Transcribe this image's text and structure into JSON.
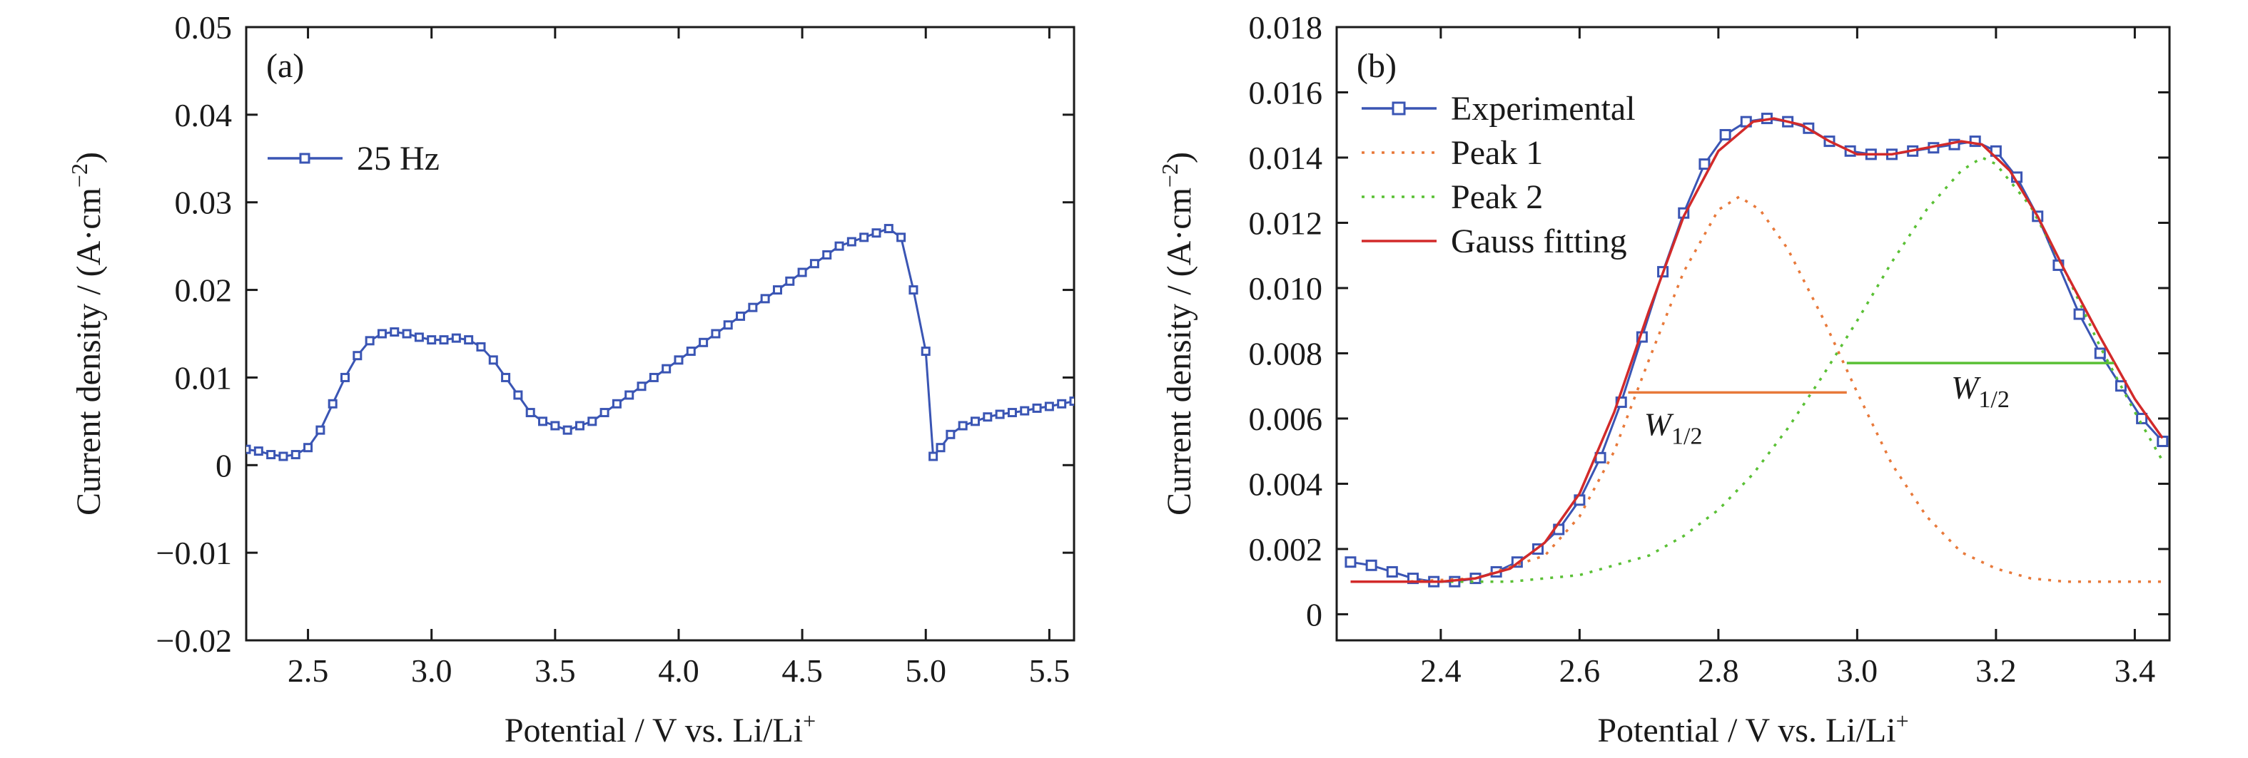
{
  "chart_data": [
    {
      "panel": "(a)",
      "type": "line",
      "xlabel": "Potential / V vs. Li/Li",
      "xlabel_sup": "+",
      "ylabel": "Current density / (A·cm",
      "ylabel_sup": "−2",
      "ylabel_end": ")",
      "xlim": [
        2.25,
        5.6
      ],
      "ylim": [
        -0.02,
        0.05
      ],
      "xticks": [
        2.5,
        3.0,
        3.5,
        4.0,
        4.5,
        5.0,
        5.5
      ],
      "xtick_labels": [
        "2.5",
        "3.0",
        "3.5",
        "4.0",
        "4.5",
        "5.0",
        "5.5"
      ],
      "yticks": [
        -0.02,
        -0.01,
        0,
        0.01,
        0.02,
        0.03,
        0.04,
        0.05
      ],
      "ytick_labels": [
        "−0.02",
        "−0.01",
        "0",
        "0.01",
        "0.02",
        "0.03",
        "0.04",
        "0.05"
      ],
      "legend_position": "upper-left",
      "series": [
        {
          "name": "25 Hz",
          "color": "#3a55b4",
          "marker": "open-square",
          "x": [
            2.25,
            2.3,
            2.35,
            2.4,
            2.45,
            2.5,
            2.55,
            2.6,
            2.65,
            2.7,
            2.75,
            2.8,
            2.85,
            2.9,
            2.95,
            3.0,
            3.05,
            3.1,
            3.15,
            3.2,
            3.25,
            3.3,
            3.35,
            3.4,
            3.45,
            3.5,
            3.55,
            3.6,
            3.65,
            3.7,
            3.75,
            3.8,
            3.85,
            3.9,
            3.95,
            4.0,
            4.05,
            4.1,
            4.15,
            4.2,
            4.25,
            4.3,
            4.35,
            4.4,
            4.45,
            4.5,
            4.55,
            4.6,
            4.65,
            4.7,
            4.75,
            4.8,
            4.85,
            4.9,
            4.95,
            5.0,
            5.03,
            5.06,
            5.1,
            5.15,
            5.2,
            5.25,
            5.3,
            5.35,
            5.4,
            5.45,
            5.5,
            5.55,
            5.6
          ],
          "y": [
            0.0018,
            0.0016,
            0.0012,
            0.001,
            0.0012,
            0.002,
            0.004,
            0.007,
            0.01,
            0.0125,
            0.0142,
            0.015,
            0.0152,
            0.015,
            0.0146,
            0.0143,
            0.0143,
            0.0145,
            0.0143,
            0.0135,
            0.012,
            0.01,
            0.008,
            0.006,
            0.005,
            0.0045,
            0.004,
            0.0045,
            0.005,
            0.006,
            0.007,
            0.008,
            0.009,
            0.01,
            0.011,
            0.012,
            0.013,
            0.014,
            0.015,
            0.016,
            0.017,
            0.018,
            0.019,
            0.02,
            0.021,
            0.022,
            0.023,
            0.024,
            0.025,
            0.0255,
            0.026,
            0.0265,
            0.027,
            0.026,
            0.02,
            0.013,
            0.001,
            0.002,
            0.0035,
            0.0045,
            0.005,
            0.0055,
            0.0058,
            0.006,
            0.0062,
            0.0065,
            0.0067,
            0.007,
            0.0073
          ]
        }
      ]
    },
    {
      "panel": "(b)",
      "type": "line",
      "xlabel": "Potential / V vs. Li/Li",
      "xlabel_sup": "+",
      "ylabel": "Current density / (A·cm",
      "ylabel_sup": "−2",
      "ylabel_end": ")",
      "xlim": [
        2.25,
        3.45
      ],
      "ylim": [
        -0.0008,
        0.018
      ],
      "xticks": [
        2.4,
        2.6,
        2.8,
        3.0,
        3.2,
        3.4
      ],
      "xtick_labels": [
        "2.4",
        "2.6",
        "2.8",
        "3.0",
        "3.2",
        "3.4"
      ],
      "yticks": [
        0,
        0.002,
        0.004,
        0.006,
        0.008,
        0.01,
        0.012,
        0.014,
        0.016,
        0.018
      ],
      "ytick_labels": [
        "0",
        "0.002",
        "0.004",
        "0.006",
        "0.008",
        "0.010",
        "0.012",
        "0.014",
        "0.016",
        "0.018"
      ],
      "legend_position": "upper-left",
      "series": [
        {
          "name": "Experimental",
          "color": "#3a55b4",
          "marker": "open-square",
          "x": [
            2.27,
            2.3,
            2.33,
            2.36,
            2.39,
            2.42,
            2.45,
            2.48,
            2.51,
            2.54,
            2.57,
            2.6,
            2.63,
            2.66,
            2.69,
            2.72,
            2.75,
            2.78,
            2.81,
            2.84,
            2.87,
            2.9,
            2.93,
            2.96,
            2.99,
            3.02,
            3.05,
            3.08,
            3.11,
            3.14,
            3.17,
            3.2,
            3.23,
            3.26,
            3.29,
            3.32,
            3.35,
            3.38,
            3.41,
            3.44
          ],
          "y": [
            0.0016,
            0.0015,
            0.0013,
            0.0011,
            0.001,
            0.001,
            0.0011,
            0.0013,
            0.0016,
            0.002,
            0.0026,
            0.0035,
            0.0048,
            0.0065,
            0.0085,
            0.0105,
            0.0123,
            0.0138,
            0.0147,
            0.0151,
            0.0152,
            0.0151,
            0.0149,
            0.0145,
            0.0142,
            0.0141,
            0.0141,
            0.0142,
            0.0143,
            0.0144,
            0.0145,
            0.0142,
            0.0134,
            0.0122,
            0.0107,
            0.0092,
            0.008,
            0.007,
            0.006,
            0.0053
          ]
        },
        {
          "name": "Peak 1",
          "color": "#e8793a",
          "style": "dotted",
          "x": [
            2.27,
            2.35,
            2.45,
            2.55,
            2.6,
            2.65,
            2.7,
            2.75,
            2.8,
            2.83,
            2.86,
            2.9,
            2.95,
            3.0,
            3.05,
            3.1,
            3.15,
            3.2,
            3.25,
            3.3,
            3.35,
            3.4,
            3.44
          ],
          "y": [
            0.001,
            0.001,
            0.0011,
            0.0018,
            0.003,
            0.005,
            0.0078,
            0.0105,
            0.0124,
            0.0128,
            0.0124,
            0.0112,
            0.0091,
            0.0068,
            0.0046,
            0.003,
            0.0019,
            0.0014,
            0.0011,
            0.001,
            0.001,
            0.001,
            0.001
          ]
        },
        {
          "name": "Peak 2",
          "color": "#5ac035",
          "style": "dotted",
          "x": [
            2.27,
            2.4,
            2.5,
            2.6,
            2.7,
            2.75,
            2.8,
            2.85,
            2.9,
            2.95,
            3.0,
            3.05,
            3.1,
            3.15,
            3.18,
            3.2,
            3.25,
            3.3,
            3.35,
            3.4,
            3.44
          ],
          "y": [
            0.001,
            0.001,
            0.001,
            0.0012,
            0.0018,
            0.0024,
            0.0032,
            0.0043,
            0.0057,
            0.0073,
            0.009,
            0.0108,
            0.0124,
            0.0136,
            0.014,
            0.0138,
            0.0125,
            0.0105,
            0.0082,
            0.0062,
            0.0047
          ]
        },
        {
          "name": "Gauss fitting",
          "color": "#d22a2a",
          "style": "solid",
          "x": [
            2.27,
            2.35,
            2.4,
            2.45,
            2.5,
            2.55,
            2.6,
            2.65,
            2.7,
            2.75,
            2.8,
            2.85,
            2.88,
            2.92,
            2.96,
            3.0,
            3.05,
            3.1,
            3.15,
            3.18,
            3.22,
            3.26,
            3.3,
            3.35,
            3.4,
            3.44
          ],
          "y": [
            0.001,
            0.001,
            0.001,
            0.0011,
            0.0014,
            0.0022,
            0.0037,
            0.0062,
            0.0093,
            0.0122,
            0.0142,
            0.0151,
            0.0152,
            0.015,
            0.0145,
            0.0141,
            0.0141,
            0.0143,
            0.0145,
            0.0144,
            0.0136,
            0.0122,
            0.0105,
            0.0085,
            0.0066,
            0.0054
          ]
        }
      ],
      "annotations": [
        {
          "label": "W",
          "sub": "1/2",
          "color": "#e8793a",
          "x1": 2.67,
          "x2": 2.985,
          "y": 0.0068
        },
        {
          "label": "W",
          "sub": "1/2",
          "color": "#5ac035",
          "x1": 2.985,
          "x2": 3.37,
          "y": 0.0077
        }
      ]
    }
  ]
}
